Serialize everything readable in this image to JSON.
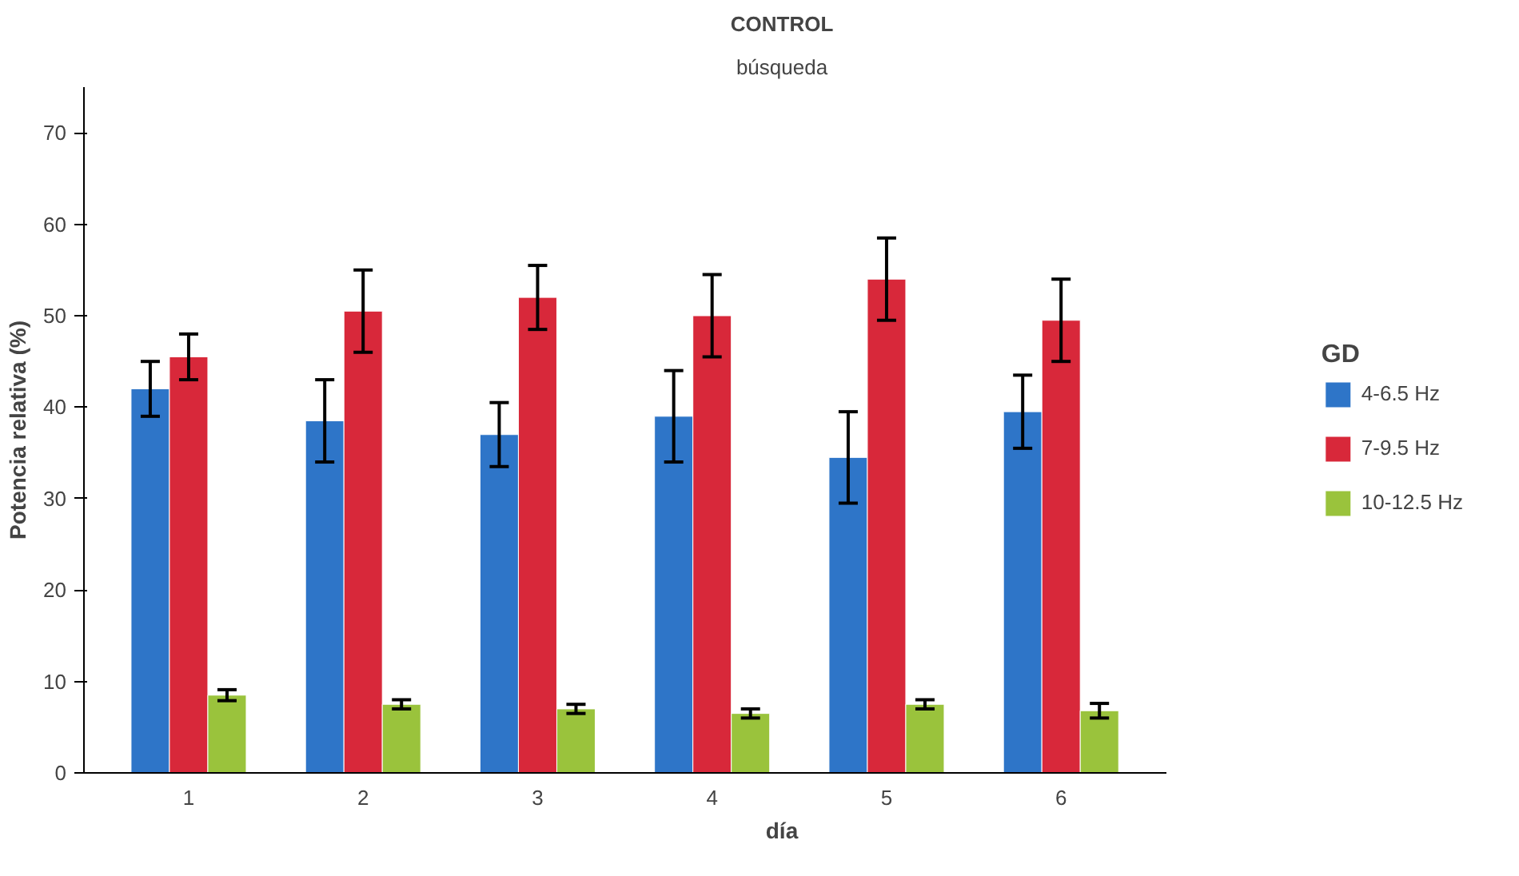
{
  "chart_data": {
    "type": "bar",
    "title": "CONTROL",
    "subtitle": "búsqueda",
    "xlabel": "día",
    "ylabel": "Potencia relativa (%)",
    "legend_title": "GD",
    "categories": [
      "1",
      "2",
      "3",
      "4",
      "5",
      "6"
    ],
    "series": [
      {
        "name": "4-6.5 Hz",
        "color": "#2e75c8",
        "values": [
          42,
          38.5,
          37,
          39,
          34.5,
          39.5
        ],
        "errors": [
          3,
          4.5,
          3.5,
          5,
          5,
          4
        ]
      },
      {
        "name": "7-9.5 Hz",
        "color": "#d8283a",
        "values": [
          45.5,
          50.5,
          52,
          50,
          54,
          49.5
        ],
        "errors": [
          2.5,
          4.5,
          3.5,
          4.5,
          4.5,
          4.5
        ]
      },
      {
        "name": "10-12.5 Hz",
        "color": "#9ac33c",
        "values": [
          8.5,
          7.5,
          7,
          6.5,
          7.5,
          6.8
        ],
        "errors": [
          0.6,
          0.5,
          0.5,
          0.5,
          0.5,
          0.8
        ]
      }
    ],
    "ylim": [
      0,
      75
    ],
    "yticks": [
      0,
      10,
      20,
      30,
      40,
      50,
      60,
      70
    ],
    "grid": false,
    "legend": "right"
  }
}
